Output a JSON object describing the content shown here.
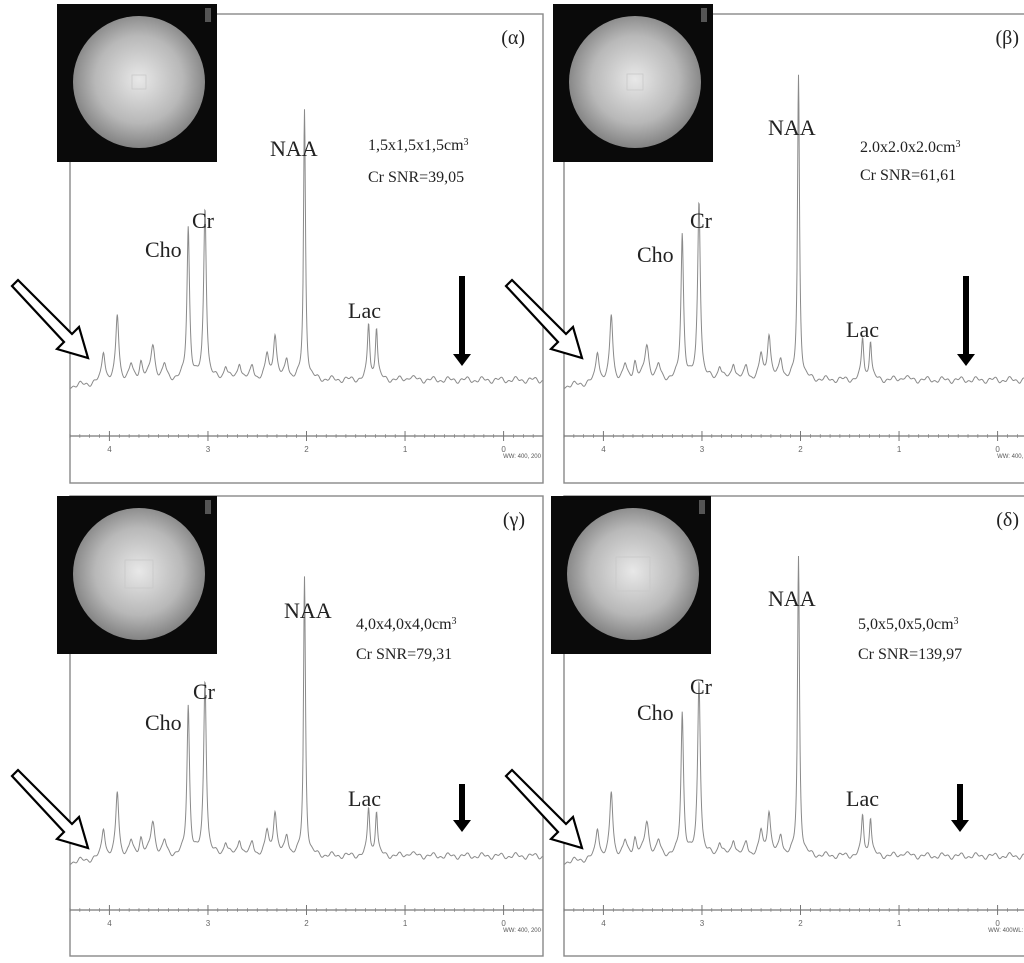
{
  "panels": [
    {
      "id": "alpha",
      "letter": "(α)",
      "voxel": "1,5x1,5x1,5cm",
      "voxel_exp": "3",
      "snr": "Cr SNR=39,05",
      "ww": "WW: 400, 200",
      "peak_labels": {
        "cho": "Cho",
        "cr": "Cr",
        "naa": "NAA",
        "lac": "Lac"
      },
      "chart_data": {
        "type": "line",
        "x_direction": "reversed",
        "xlim": [
          4.4,
          -0.4
        ],
        "x_ticks": [
          "4",
          "3",
          "2",
          "1",
          "0"
        ],
        "peaks_ppm": {
          "Cho": 3.2,
          "Cr": 3.03,
          "NAA": 2.02,
          "Lac": [
            1.37,
            1.29
          ]
        },
        "relative_heights": {
          "Cho": 0.44,
          "Cr": 0.5,
          "NAA": 0.78,
          "Lac": 0.16
        },
        "baseline_spectrum_end": "descending at ppm 4.4"
      }
    },
    {
      "id": "beta",
      "letter": "(β)",
      "voxel": "2.0x2.0x2.0cm",
      "voxel_exp": "3",
      "snr": "Cr SNR=61,61",
      "ww": "WW: 400, 200",
      "peak_labels": {
        "cho": "Cho",
        "cr": "Cr",
        "naa": "NAA",
        "lac": "Lac"
      },
      "chart_data": {
        "type": "line",
        "x_direction": "reversed",
        "xlim": [
          4.4,
          -0.4
        ],
        "x_ticks": [
          "4",
          "3",
          "2",
          "1",
          "0"
        ],
        "peaks_ppm": {
          "Cho": 3.2,
          "Cr": 3.03,
          "NAA": 2.02,
          "Lac": [
            1.37,
            1.29
          ]
        },
        "relative_heights": {
          "Cho": 0.42,
          "Cr": 0.52,
          "NAA": 0.88,
          "Lac": 0.12
        },
        "baseline_spectrum_end": "descending at ppm 4.4"
      }
    },
    {
      "id": "gamma",
      "letter": "(γ)",
      "voxel": "4,0x4,0x4,0cm",
      "voxel_exp": "3",
      "snr": "Cr SNR=79,31",
      "ww": "WW: 400, 200",
      "peak_labels": {
        "cho": "Cho",
        "cr": "Cr",
        "naa": "NAA",
        "lac": "Lac"
      },
      "chart_data": {
        "type": "line",
        "x_direction": "reversed",
        "xlim": [
          4.4,
          -0.4
        ],
        "x_ticks": [
          "4",
          "3",
          "2",
          "1",
          "0"
        ],
        "peaks_ppm": {
          "Cho": 3.2,
          "Cr": 3.03,
          "NAA": 2.02,
          "Lac": [
            1.37,
            1.29
          ]
        },
        "relative_heights": {
          "Cho": 0.44,
          "Cr": 0.52,
          "NAA": 0.82,
          "Lac": 0.14
        },
        "baseline_spectrum_end": "descending at ppm 4.4"
      }
    },
    {
      "id": "delta",
      "letter": "(δ)",
      "voxel": "5,0x5,0x5,0cm",
      "voxel_exp": "3",
      "snr": "Cr SNR=139,97",
      "ww": "WW: 400WL: 200",
      "peak_labels": {
        "cho": "Cho",
        "cr": "Cr",
        "naa": "NAA",
        "lac": "Lac"
      },
      "chart_data": {
        "type": "line",
        "x_direction": "reversed",
        "xlim": [
          4.4,
          -0.4
        ],
        "x_ticks": [
          "4",
          "3",
          "2",
          "1",
          "0"
        ],
        "peaks_ppm": {
          "Cho": 3.2,
          "Cr": 3.03,
          "NAA": 2.02,
          "Lac": [
            1.37,
            1.29
          ]
        },
        "relative_heights": {
          "Cho": 0.42,
          "Cr": 0.52,
          "NAA": 0.88,
          "Lac": 0.12
        },
        "baseline_spectrum_end": "descending at ppm 4.4"
      }
    }
  ],
  "colors": {
    "frame": "#888888",
    "spectrum": "#8a8a8a",
    "axis": "#777777",
    "text": "#222222",
    "arrow": "#000000",
    "inset_bg": "#0a0a0a"
  }
}
